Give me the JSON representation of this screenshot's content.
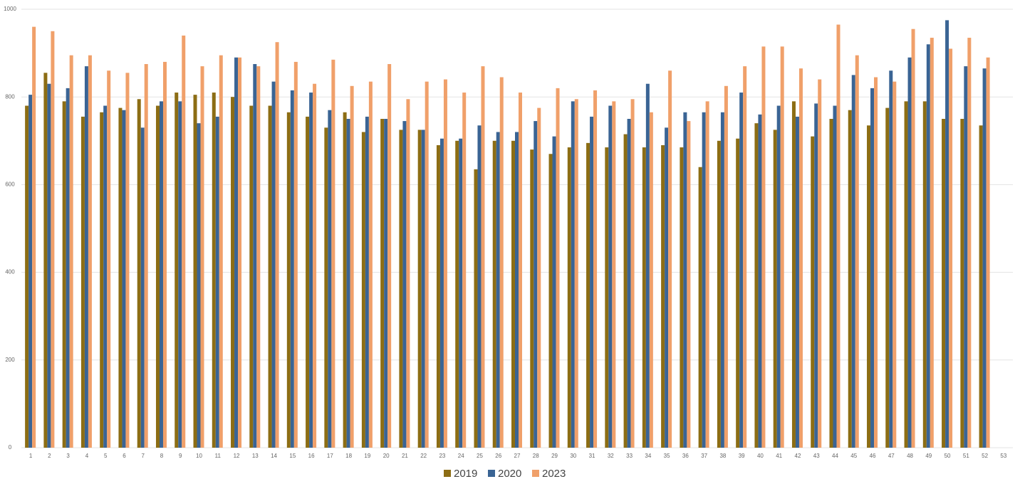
{
  "chart_data": {
    "type": "bar",
    "categories": [
      "1",
      "2",
      "3",
      "4",
      "5",
      "6",
      "7",
      "8",
      "9",
      "10",
      "11",
      "12",
      "13",
      "14",
      "15",
      "16",
      "17",
      "18",
      "19",
      "20",
      "21",
      "22",
      "23",
      "24",
      "25",
      "26",
      "27",
      "28",
      "29",
      "30",
      "31",
      "32",
      "33",
      "34",
      "35",
      "36",
      "37",
      "38",
      "39",
      "40",
      "41",
      "42",
      "43",
      "44",
      "45",
      "46",
      "47",
      "48",
      "49",
      "50",
      "51",
      "52",
      "53"
    ],
    "series": [
      {
        "name": "2019",
        "color": "#8c6d14",
        "values": [
          780,
          855,
          790,
          755,
          765,
          775,
          795,
          780,
          810,
          805,
          810,
          800,
          780,
          780,
          765,
          755,
          730,
          765,
          720,
          750,
          725,
          725,
          690,
          700,
          635,
          700,
          700,
          680,
          670,
          685,
          695,
          685,
          715,
          685,
          690,
          685,
          640,
          700,
          705,
          740,
          725,
          790,
          710,
          750,
          770,
          735,
          775,
          790,
          790,
          750,
          750,
          735,
          null
        ]
      },
      {
        "name": "2020",
        "color": "#3a6494",
        "values": [
          805,
          830,
          820,
          870,
          780,
          770,
          730,
          790,
          790,
          740,
          755,
          890,
          875,
          835,
          815,
          810,
          770,
          750,
          755,
          750,
          745,
          725,
          705,
          705,
          735,
          720,
          720,
          745,
          710,
          790,
          755,
          780,
          750,
          830,
          730,
          765,
          765,
          765,
          810,
          760,
          780,
          755,
          785,
          780,
          850,
          820,
          860,
          890,
          920,
          975,
          870,
          865,
          null
        ]
      },
      {
        "name": "2023",
        "color": "#f0a06a",
        "values": [
          960,
          950,
          895,
          895,
          860,
          855,
          875,
          880,
          940,
          870,
          895,
          890,
          870,
          925,
          880,
          830,
          885,
          825,
          835,
          875,
          795,
          835,
          840,
          810,
          870,
          845,
          810,
          775,
          820,
          795,
          815,
          790,
          795,
          765,
          860,
          745,
          790,
          825,
          870,
          915,
          915,
          865,
          840,
          965,
          895,
          845,
          835,
          955,
          935,
          910,
          935,
          890,
          null
        ]
      }
    ],
    "ylim": [
      0,
      1000
    ],
    "yticks": [
      0,
      200,
      400,
      600,
      800,
      1000
    ],
    "grid": true,
    "legend": "bottom"
  }
}
